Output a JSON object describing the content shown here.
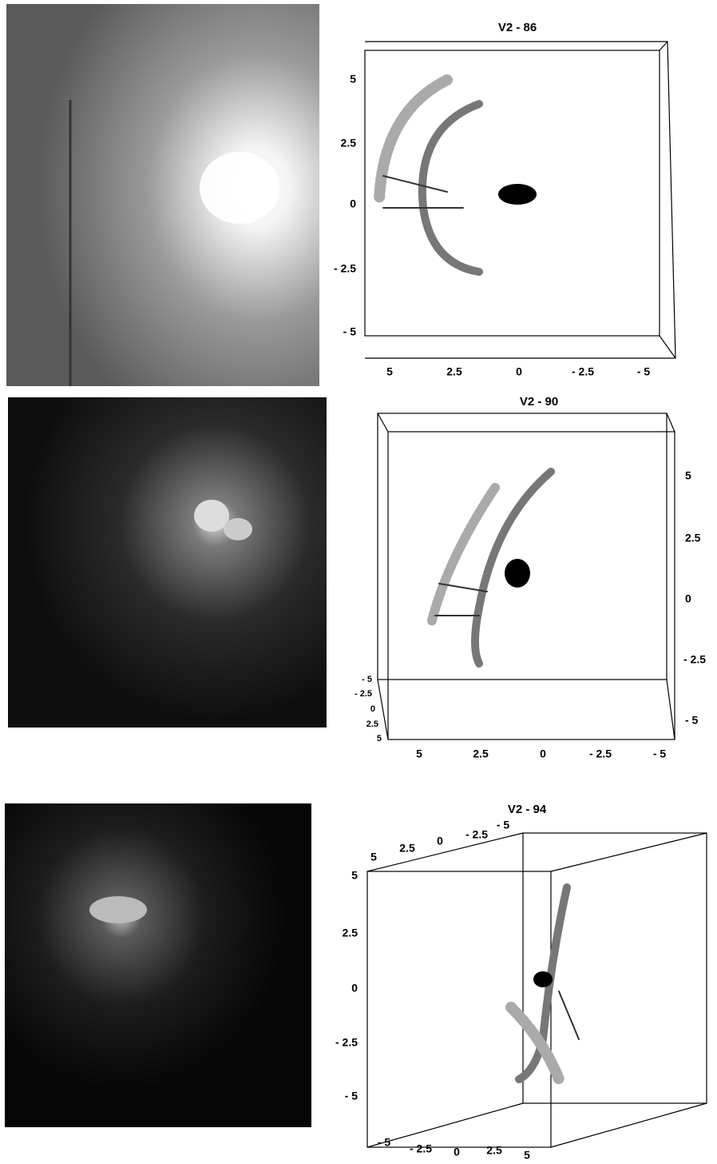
{
  "panels": [
    {
      "title": "V2 - 86",
      "y_ticks": [
        "5",
        "2.5",
        "0",
        "- 2.5",
        "- 5"
      ],
      "x_ticks": [
        "5",
        "2.5",
        "0",
        "- 2.5",
        "- 5"
      ]
    },
    {
      "title": "V2 - 90",
      "y_ticks": [
        "5",
        "2.5",
        "0",
        "- 2.5",
        "- 5"
      ],
      "x_ticks": [
        "5",
        "2.5",
        "0",
        "- 2.5",
        "- 5"
      ],
      "depth_ticks": [
        "- 5",
        "- 2.5",
        "0",
        "2.5",
        "5"
      ]
    },
    {
      "title": "V2 - 94",
      "y_ticks": [
        "5",
        "2.5",
        "0",
        "- 2.5",
        "- 5"
      ],
      "x_ticks": [
        "- 5",
        "- 2.5",
        "0",
        "2.5",
        "5"
      ],
      "depth_ticks": [
        "5",
        "2.5",
        "0",
        "- 2.5",
        "- 5"
      ]
    }
  ]
}
